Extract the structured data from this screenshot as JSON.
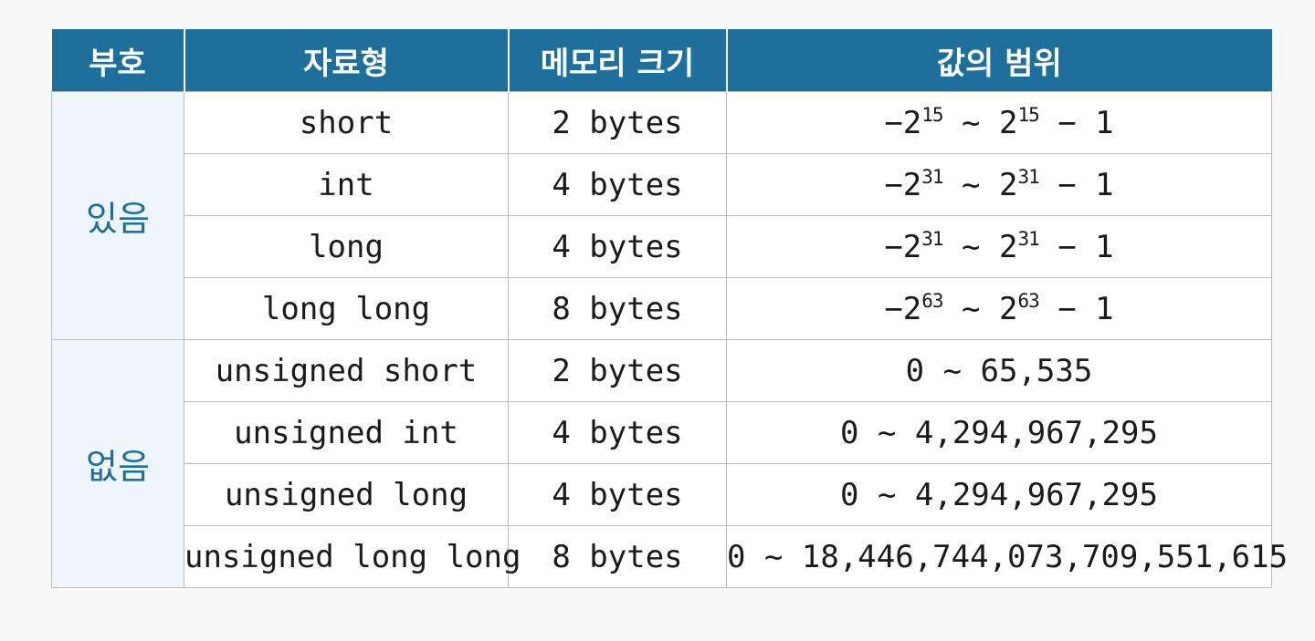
{
  "headers": {
    "sign": "부호",
    "type": "자료형",
    "size": "메모리 크기",
    "range": "값의 범위"
  },
  "groups": {
    "signed": "있음",
    "unsigned": "없음"
  },
  "rows": [
    {
      "type": "short",
      "size": "2 bytes",
      "range": {
        "lead": "−2",
        "exp1": "15",
        "mid": " ~ 2",
        "exp2": "15",
        "tail": " − 1"
      }
    },
    {
      "type": "int",
      "size": "4 bytes",
      "range": {
        "lead": "−2",
        "exp1": "31",
        "mid": " ~ 2",
        "exp2": "31",
        "tail": " − 1"
      }
    },
    {
      "type": "long",
      "size": "4 bytes",
      "range": {
        "lead": "−2",
        "exp1": "31",
        "mid": " ~ 2",
        "exp2": "31",
        "tail": " − 1"
      }
    },
    {
      "type": "long long",
      "size": "8 bytes",
      "range": {
        "lead": "−2",
        "exp1": "63",
        "mid": " ~ 2",
        "exp2": "63",
        "tail": " − 1"
      }
    },
    {
      "type": "unsigned short",
      "size": "2 bytes",
      "range_text": "0 ~ 65,535"
    },
    {
      "type": "unsigned int",
      "size": "4 bytes",
      "range_text": "0 ~ 4,294,967,295"
    },
    {
      "type": "unsigned long",
      "size": "4 bytes",
      "range_text": "0 ~ 4,294,967,295"
    },
    {
      "type": "unsigned long long",
      "size": "8 bytes",
      "range_text": "0 ~ 18,446,744,073,709,551,615"
    }
  ]
}
